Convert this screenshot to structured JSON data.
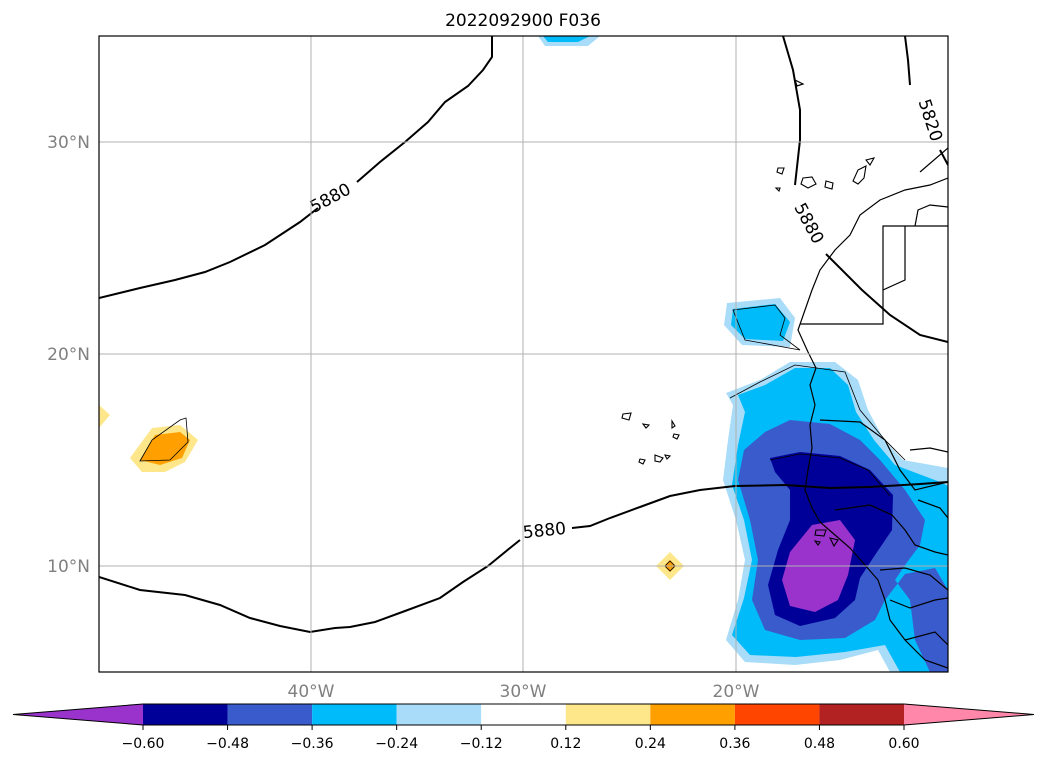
{
  "title": "2022092900 F036",
  "map": {
    "lat_labels": [
      "30°N",
      "20°N",
      "10°N"
    ],
    "lon_labels": [
      "40°W",
      "30°W",
      "20°W"
    ],
    "contour_labels": [
      "5880",
      "5880",
      "5880",
      "5820"
    ],
    "colors": {
      "coast": "#000000",
      "grid": "#b0b0b0",
      "contour": "#000000"
    }
  },
  "colorbar": {
    "ticks": [
      "−0.60",
      "−0.48",
      "−0.36",
      "−0.24",
      "−0.12",
      "0.12",
      "0.24",
      "0.36",
      "0.48",
      "0.60"
    ],
    "colors": [
      "#9933cc",
      "#000099",
      "#3a5bcc",
      "#00bbf9",
      "#a8dcf8",
      "#ffffff",
      "#fee78b",
      "#ffa000",
      "#ff4500",
      "#b22222",
      "#ff88aa"
    ]
  }
}
